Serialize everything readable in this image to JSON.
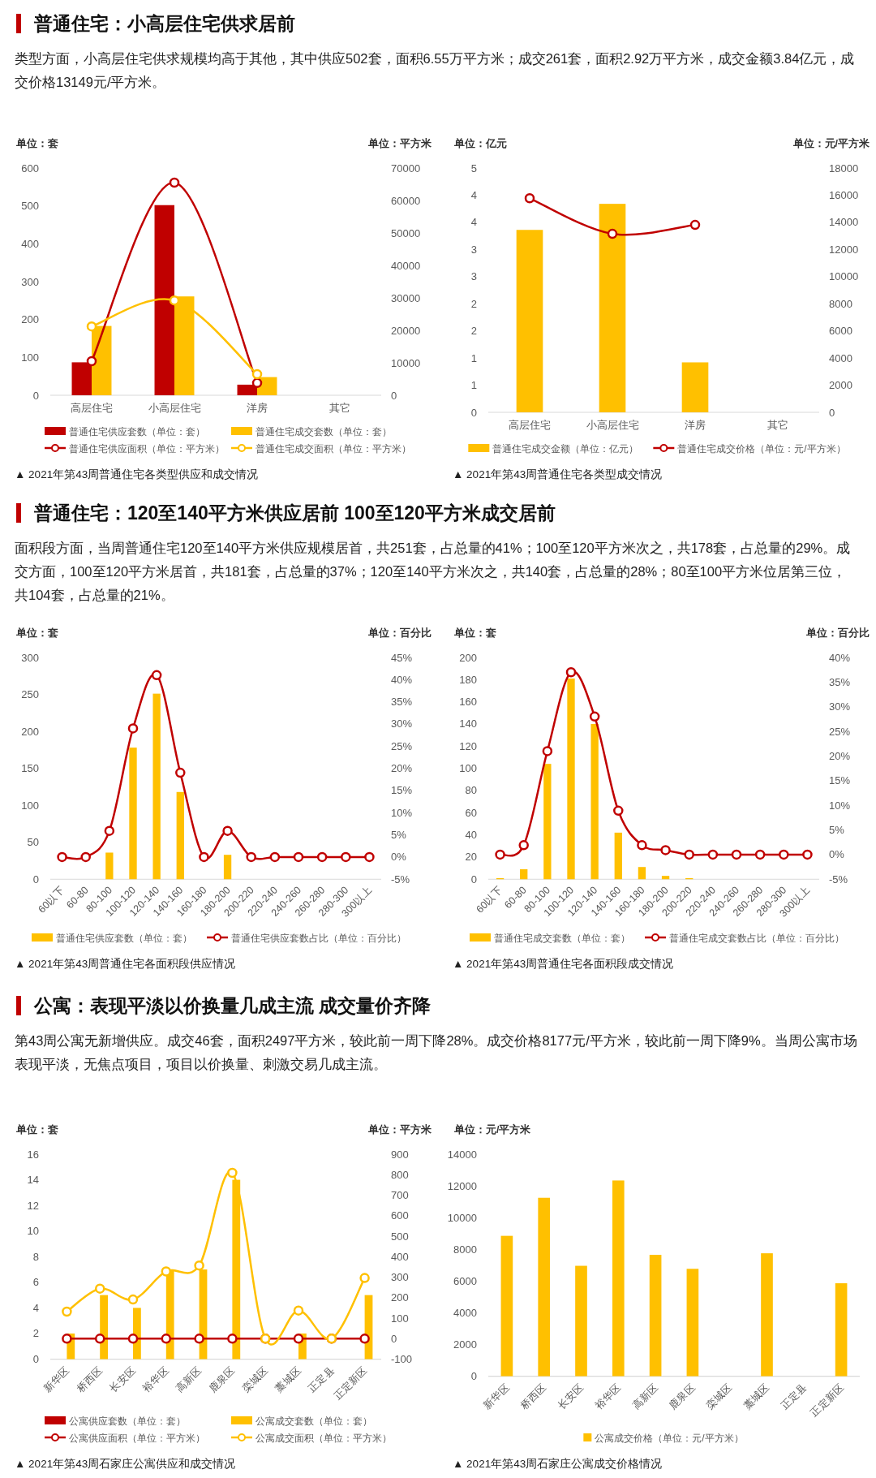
{
  "chart_data": [
    {
      "type": "bar",
      "title": "普通住宅：小高层住宅供求居前",
      "subtitle": "类型方面，小高层住宅供求规模均高于其他，其中供应502套，面积6.55万平方米；成交261套，面积2.92万平方米，成交金额3.84亿元，成交价格13149元/平方米。",
      "ylabel": "单位：套",
      "y2label": "单位：平方米",
      "categories": [
        "高层住宅",
        "小高层住宅",
        "洋房",
        "其它"
      ],
      "ylim": [
        0,
        600
      ],
      "yticks": [
        0,
        100,
        200,
        300,
        400,
        500,
        600
      ],
      "y2lim": [
        0,
        70000
      ],
      "y2ticks": [
        0,
        10000,
        20000,
        30000,
        40000,
        50000,
        60000,
        70000
      ],
      "legend": "bottom",
      "marker": "circle",
      "annotations": [
        "▲ 2021年第43周普通住宅各类型供应和成交情况"
      ],
      "series": [
        {
          "name": "普通住宅供应套数（单位：套）",
          "color": "#c00000",
          "values": [
            87,
            502,
            28,
            null
          ]
        },
        {
          "name": "普通住宅成交套数（单位：套）",
          "color": "#ffc000",
          "values": [
            183,
            261,
            48,
            null
          ]
        },
        {
          "name": "普通住宅供应面积（单位：平方米）",
          "type": "line",
          "axis": "y2",
          "color": "#c00000",
          "values": [
            10500,
            65500,
            3800,
            null
          ]
        },
        {
          "name": "普通住宅成交面积（单位：平方米）",
          "type": "line",
          "axis": "y2",
          "color": "#ffc000",
          "values": [
            21200,
            29200,
            6500,
            null
          ]
        }
      ]
    },
    {
      "type": "bar",
      "ylabel": "单位：亿元",
      "y2label": "单位：元/平方米",
      "categories": [
        "高层住宅",
        "小高层住宅",
        "洋房",
        "其它"
      ],
      "ylim": [
        0,
        4.5
      ],
      "yticks": [
        0,
        {
          "value": 0.5,
          "label": "1"
        },
        1,
        {
          "value": 1.5,
          "label": "2"
        },
        2,
        {
          "value": 2.5,
          "label": "3"
        },
        3,
        {
          "value": 3.5,
          "label": "4"
        },
        4,
        {
          "value": 4.5,
          "label": "5"
        }
      ],
      "y2lim": [
        0,
        18000
      ],
      "y2ticks": [
        0,
        2000,
        4000,
        6000,
        8000,
        10000,
        12000,
        14000,
        16000,
        18000
      ],
      "legend": "bottom",
      "marker": "circle",
      "annotations": [
        "▲ 2021年第43周普通住宅各类型成交情况"
      ],
      "series": [
        {
          "name": "普通住宅成交金额（单位：亿元）",
          "color": "#ffc000",
          "values": [
            3.36,
            3.84,
            0.92,
            null
          ]
        },
        {
          "name": "普通住宅成交价格（单位：元/平方米）",
          "type": "line",
          "axis": "y2",
          "color": "#c00000",
          "values": [
            15770,
            13149,
            13810,
            null
          ]
        }
      ]
    },
    {
      "type": "bar",
      "title": "普通住宅：120至140平方米供应居前 100至120平方米成交居前",
      "subtitle": "面积段方面，当周普通住宅120至140平方米供应规模居首，共251套，占总量的41%；100至120平方米次之，共178套，占总量的29%。成交方面，100至120平方米居首，共181套，占总量的37%；120至140平方米次之，共140套，占总量的28%；80至100平方米位居第三位，共104套，占总量的21%。",
      "ylabel": "单位：套",
      "y2label": "单位：百分比",
      "categories": [
        "60以下",
        "60-80",
        "80-100",
        "100-120",
        "120-140",
        "140-160",
        "160-180",
        "180-200",
        "200-220",
        "220-240",
        "240-260",
        "260-280",
        "280-300",
        "300以上"
      ],
      "ylim": [
        0,
        300
      ],
      "yticks": [
        0,
        50,
        100,
        150,
        200,
        250,
        300
      ],
      "y2lim": [
        -5,
        45
      ],
      "y2ticks": [
        {
          "value": -5,
          "label": "-5%"
        },
        {
          "value": 0,
          "label": "0%"
        },
        {
          "value": 5,
          "label": "5%"
        },
        {
          "value": 10,
          "label": "10%"
        },
        {
          "value": 15,
          "label": "15%"
        },
        {
          "value": 20,
          "label": "20%"
        },
        {
          "value": 25,
          "label": "25%"
        },
        {
          "value": 30,
          "label": "30%"
        },
        {
          "value": 35,
          "label": "35%"
        },
        {
          "value": 40,
          "label": "40%"
        },
        {
          "value": 45,
          "label": "45%"
        }
      ],
      "legend": "bottom",
      "marker": "circle",
      "annotations": [
        "▲ 2021年第43周普通住宅各面积段供应情况"
      ],
      "series": [
        {
          "name": "普通住宅供应套数（单位：套）",
          "color": "#ffc000",
          "values": [
            0,
            0,
            36,
            178,
            251,
            118,
            0,
            33,
            0,
            0,
            0,
            0,
            0,
            0
          ]
        },
        {
          "name": "普通住宅供应套数占比（单位：百分比）",
          "type": "line",
          "axis": "y2",
          "color": "#c00000",
          "values": [
            0,
            0,
            5.9,
            29,
            41,
            19,
            0,
            5.9,
            0,
            0,
            0,
            0,
            0,
            0
          ]
        }
      ]
    },
    {
      "type": "bar",
      "ylabel": "单位：套",
      "y2label": "单位：百分比",
      "categories": [
        "60以下",
        "60-80",
        "80-100",
        "100-120",
        "120-140",
        "140-160",
        "160-180",
        "180-200",
        "200-220",
        "220-240",
        "240-260",
        "260-280",
        "280-300",
        "300以上"
      ],
      "ylim": [
        0,
        200
      ],
      "yticks": [
        0,
        20,
        40,
        60,
        80,
        100,
        120,
        140,
        160,
        180,
        200
      ],
      "y2lim": [
        -5,
        40
      ],
      "y2ticks": [
        {
          "value": -5,
          "label": "-5%"
        },
        {
          "value": 0,
          "label": "0%"
        },
        {
          "value": 5,
          "label": "5%"
        },
        {
          "value": 10,
          "label": "10%"
        },
        {
          "value": 15,
          "label": "15%"
        },
        {
          "value": 20,
          "label": "20%"
        },
        {
          "value": 25,
          "label": "25%"
        },
        {
          "value": 30,
          "label": "30%"
        },
        {
          "value": 35,
          "label": "35%"
        },
        {
          "value": 40,
          "label": "40%"
        }
      ],
      "legend": "bottom",
      "marker": "circle",
      "annotations": [
        "▲ 2021年第43周普通住宅各面积段成交情况"
      ],
      "series": [
        {
          "name": "普通住宅成交套数（单位：套）",
          "color": "#ffc000",
          "values": [
            1,
            9,
            104,
            181,
            140,
            42,
            11,
            3,
            1,
            0,
            0,
            0,
            0,
            0
          ]
        },
        {
          "name": "普通住宅成交套数占比（单位：百分比）",
          "type": "line",
          "axis": "y2",
          "color": "#c00000",
          "values": [
            0,
            1.9,
            21,
            37,
            28,
            8.9,
            1.9,
            0.9,
            0,
            0,
            0,
            0,
            0,
            0
          ]
        }
      ]
    },
    {
      "type": "bar",
      "title": "公寓：表现平淡以价换量几成主流 成交量价齐降",
      "subtitle": "第43周公寓无新增供应。成交46套，面积2497平方米，较此前一周下降28%。成交价格8177元/平方米，较此前一周下降9%。当周公寓市场表现平淡，无焦点项目，项目以价换量、刺激交易几成主流。",
      "ylabel": "单位：套",
      "y2label": "单位：平方米",
      "categories": [
        "新华区",
        "桥西区",
        "长安区",
        "裕华区",
        "高新区",
        "鹿泉区",
        "栾城区",
        "藁城区",
        "正定县",
        "正定新区"
      ],
      "ylim": [
        0,
        16
      ],
      "yticks": [
        0,
        2,
        4,
        6,
        8,
        10,
        12,
        14,
        16
      ],
      "y2lim": [
        -100,
        900
      ],
      "y2ticks": [
        -100,
        0,
        100,
        200,
        300,
        400,
        500,
        600,
        700,
        800,
        900
      ],
      "legend": "bottom",
      "marker": "circle",
      "annotations": [
        "▲ 2021年第43周石家庄公寓供应和成交情况"
      ],
      "series": [
        {
          "name": "公寓供应套数（单位：套）",
          "color": "#c00000",
          "values": [
            0,
            0,
            0,
            0,
            0,
            0,
            0,
            0,
            0,
            0
          ]
        },
        {
          "name": "公寓成交套数（单位：套）",
          "color": "#ffc000",
          "values": [
            2,
            5,
            4,
            7,
            7,
            14,
            0,
            2,
            0,
            5
          ]
        },
        {
          "name": "公寓供应面积（单位：平方米）",
          "type": "line",
          "axis": "y2",
          "color": "#c00000",
          "values": [
            0,
            0,
            0,
            0,
            0,
            0,
            0,
            0,
            0,
            0
          ]
        },
        {
          "name": "公寓成交面积（单位：平方米）",
          "type": "line",
          "axis": "y2",
          "color": "#ffc000",
          "values": [
            132,
            244,
            191,
            328,
            357,
            809,
            0,
            137,
            0,
            296
          ]
        }
      ]
    },
    {
      "type": "bar",
      "ylabel": "单位：元/平方米",
      "categories": [
        "新华区",
        "桥西区",
        "长安区",
        "裕华区",
        "高新区",
        "鹿泉区",
        "栾城区",
        "藁城区",
        "正定县",
        "正定新区"
      ],
      "ylim": [
        0,
        14000
      ],
      "yticks": [
        0,
        2000,
        4000,
        6000,
        8000,
        10000,
        12000,
        14000
      ],
      "legend": "bottom",
      "annotations": [
        "▲ 2021年第43周石家庄公寓成交价格情况"
      ],
      "series": [
        {
          "name": "公寓成交价格（单位：元/平方米）",
          "color": "#ffc000",
          "values": [
            8850,
            11250,
            6960,
            12340,
            7650,
            6770,
            null,
            7750,
            null,
            5860
          ]
        }
      ]
    }
  ]
}
